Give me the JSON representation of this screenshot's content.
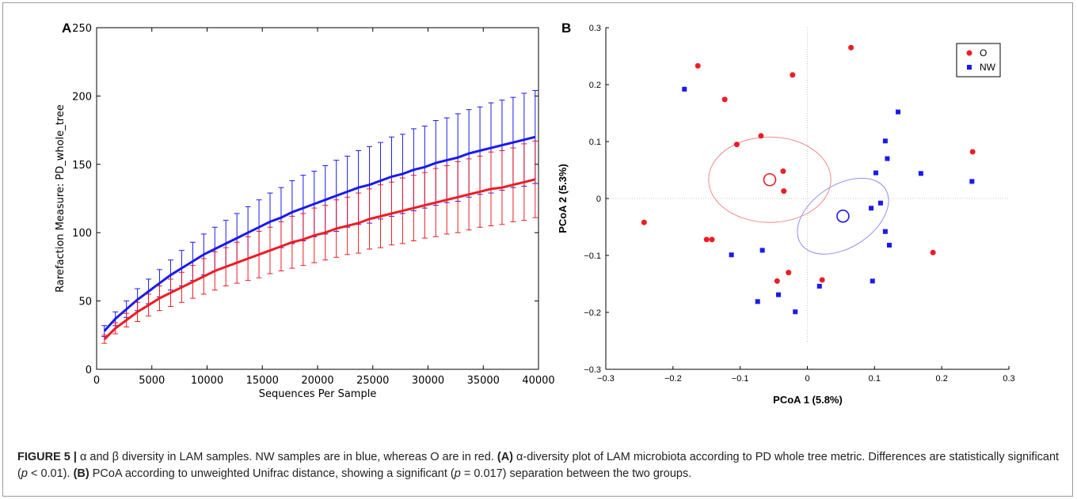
{
  "panel_a_letter": "A",
  "panel_b_letter": "B",
  "caption": {
    "figure_label": "FIGURE 5 |",
    "text_1": " α and β diversity in LAM samples. NW samples are in blue, whereas O are in red. ",
    "a_label": "(A)",
    "text_2": " α-diversity plot of LAM microbiota according to PD whole tree metric. Differences are statistically significant (",
    "p1": "p",
    "text_3": " < 0.01). ",
    "b_label": "(B)",
    "text_4": " PCoA according to unweighted Unifrac distance, showing a significant (",
    "p2": "p",
    "text_5": " = 0.017) separation between the two groups."
  },
  "colors": {
    "blue": "#1a1aef",
    "red": "#ee1c24",
    "ellipse_red": "#f08a8a",
    "ellipse_blue": "#8e8ef5"
  },
  "chart_data": [
    {
      "type": "line",
      "panel": "A",
      "title": "",
      "xlabel": "Sequences Per Sample",
      "ylabel": "Rarefaction Measure: PD_whole_tree",
      "xlim": [
        0,
        40000
      ],
      "ylim": [
        0,
        250
      ],
      "xticks": [
        0,
        5000,
        10000,
        15000,
        20000,
        25000,
        30000,
        35000,
        40000
      ],
      "yticks": [
        0,
        50,
        100,
        150,
        200,
        250
      ],
      "x": [
        700,
        1700,
        2700,
        3700,
        4700,
        5700,
        6700,
        7700,
        8700,
        9700,
        10700,
        11700,
        12700,
        13700,
        14700,
        15700,
        16700,
        17700,
        18700,
        19700,
        20700,
        21700,
        22700,
        23700,
        24700,
        25700,
        26700,
        27700,
        28700,
        29700,
        30700,
        31700,
        32700,
        33700,
        34700,
        35700,
        36700,
        37700,
        38700,
        39700
      ],
      "series": [
        {
          "color": "#1a1aef",
          "values": [
            28,
            37,
            44,
            51,
            57,
            63,
            69,
            74,
            79,
            84,
            88,
            92,
            96,
            100,
            104,
            108,
            111,
            115,
            118,
            121,
            124,
            127,
            130,
            133,
            135,
            138,
            141,
            143,
            146,
            148,
            151,
            153,
            155,
            158,
            160,
            162,
            164,
            166,
            168,
            170
          ],
          "error": [
            4,
            5,
            6,
            8,
            9,
            10,
            11,
            13,
            14,
            15,
            16,
            17,
            18,
            19,
            20,
            21,
            22,
            23,
            24,
            24,
            25,
            26,
            26,
            27,
            28,
            28,
            29,
            29,
            30,
            30,
            31,
            31,
            32,
            32,
            32,
            33,
            33,
            33,
            34,
            34
          ]
        },
        {
          "color": "#ee1c24",
          "values": [
            22,
            30,
            36,
            42,
            47,
            52,
            56,
            60,
            64,
            68,
            72,
            75,
            78,
            81,
            84,
            87,
            90,
            93,
            95,
            98,
            100,
            103,
            105,
            107,
            110,
            112,
            114,
            116,
            118,
            120,
            122,
            124,
            126,
            128,
            130,
            132,
            133,
            135,
            137,
            139
          ],
          "error": [
            3,
            4,
            5,
            7,
            8,
            9,
            10,
            11,
            12,
            13,
            14,
            14,
            15,
            16,
            17,
            17,
            18,
            19,
            19,
            20,
            20,
            21,
            21,
            22,
            22,
            23,
            23,
            24,
            24,
            24,
            25,
            25,
            26,
            26,
            26,
            27,
            27,
            27,
            28,
            28
          ]
        }
      ]
    },
    {
      "type": "scatter",
      "panel": "B",
      "title": "",
      "xlabel": "PCoA 1 (5.8%)",
      "ylabel": "PCoA 2 (5.3%)",
      "xlim": [
        -0.3,
        0.3
      ],
      "ylim": [
        -0.3,
        0.3
      ],
      "xticks": [
        -0.3,
        -0.2,
        -0.1,
        0,
        0.1,
        0.2,
        0.3
      ],
      "yticks": [
        -0.3,
        -0.2,
        -0.1,
        0,
        0.1,
        0.2,
        0.3
      ],
      "xtick_labels": [
        "−0.3",
        "−0.2",
        "−0.1",
        "0",
        "0.1",
        "0.2",
        "0.3"
      ],
      "ytick_labels": [
        "−0.3",
        "−0.2",
        "−0.1",
        "0",
        "0.1",
        "0.2",
        "0.3"
      ],
      "legend": {
        "position": "top-right",
        "entries": [
          {
            "label": "O",
            "marker": "circle",
            "color": "#ee1c24"
          },
          {
            "label": "NW",
            "marker": "square",
            "color": "#1a1aef"
          }
        ]
      },
      "series": [
        {
          "name": "O",
          "marker": "circle",
          "color": "#ee1c24",
          "points": [
            [
              -0.163,
              0.233
            ],
            [
              0.065,
              0.265
            ],
            [
              -0.022,
              0.217
            ],
            [
              -0.123,
              0.174
            ],
            [
              -0.105,
              0.095
            ],
            [
              -0.069,
              0.11
            ],
            [
              -0.036,
              0.048
            ],
            [
              -0.035,
              0.013
            ],
            [
              0.246,
              0.082
            ],
            [
              -0.243,
              -0.042
            ],
            [
              -0.15,
              -0.072
            ],
            [
              -0.142,
              -0.072
            ],
            [
              0.187,
              -0.095
            ],
            [
              -0.028,
              -0.13
            ],
            [
              -0.045,
              -0.145
            ],
            [
              0.022,
              -0.143
            ]
          ]
        },
        {
          "name": "NW",
          "marker": "square",
          "color": "#1a1aef",
          "points": [
            [
              -0.183,
              0.192
            ],
            [
              0.135,
              0.152
            ],
            [
              0.116,
              0.101
            ],
            [
              0.119,
              0.07
            ],
            [
              0.102,
              0.045
            ],
            [
              0.169,
              0.044
            ],
            [
              0.245,
              0.03
            ],
            [
              0.095,
              -0.017
            ],
            [
              0.109,
              -0.008
            ],
            [
              0.116,
              -0.058
            ],
            [
              0.122,
              -0.082
            ],
            [
              -0.113,
              -0.099
            ],
            [
              -0.067,
              -0.091
            ],
            [
              0.097,
              -0.145
            ],
            [
              0.018,
              -0.154
            ],
            [
              -0.074,
              -0.181
            ],
            [
              -0.043,
              -0.169
            ],
            [
              -0.018,
              -0.199
            ]
          ]
        }
      ],
      "centroids": [
        {
          "group": "O",
          "x": -0.056,
          "y": 0.033,
          "color": "#ee1c24"
        },
        {
          "group": "NW",
          "x": 0.053,
          "y": -0.031,
          "color": "#1a1aef"
        }
      ],
      "ellipses": [
        {
          "group": "O",
          "cx": -0.056,
          "cy": 0.033,
          "rx": 0.091,
          "ry": 0.075,
          "angle": 0,
          "color": "#f08a8a"
        },
        {
          "group": "NW",
          "cx": 0.053,
          "cy": -0.031,
          "rx": 0.075,
          "ry": 0.055,
          "angle": -33,
          "color": "#8e8ef5"
        }
      ]
    }
  ]
}
